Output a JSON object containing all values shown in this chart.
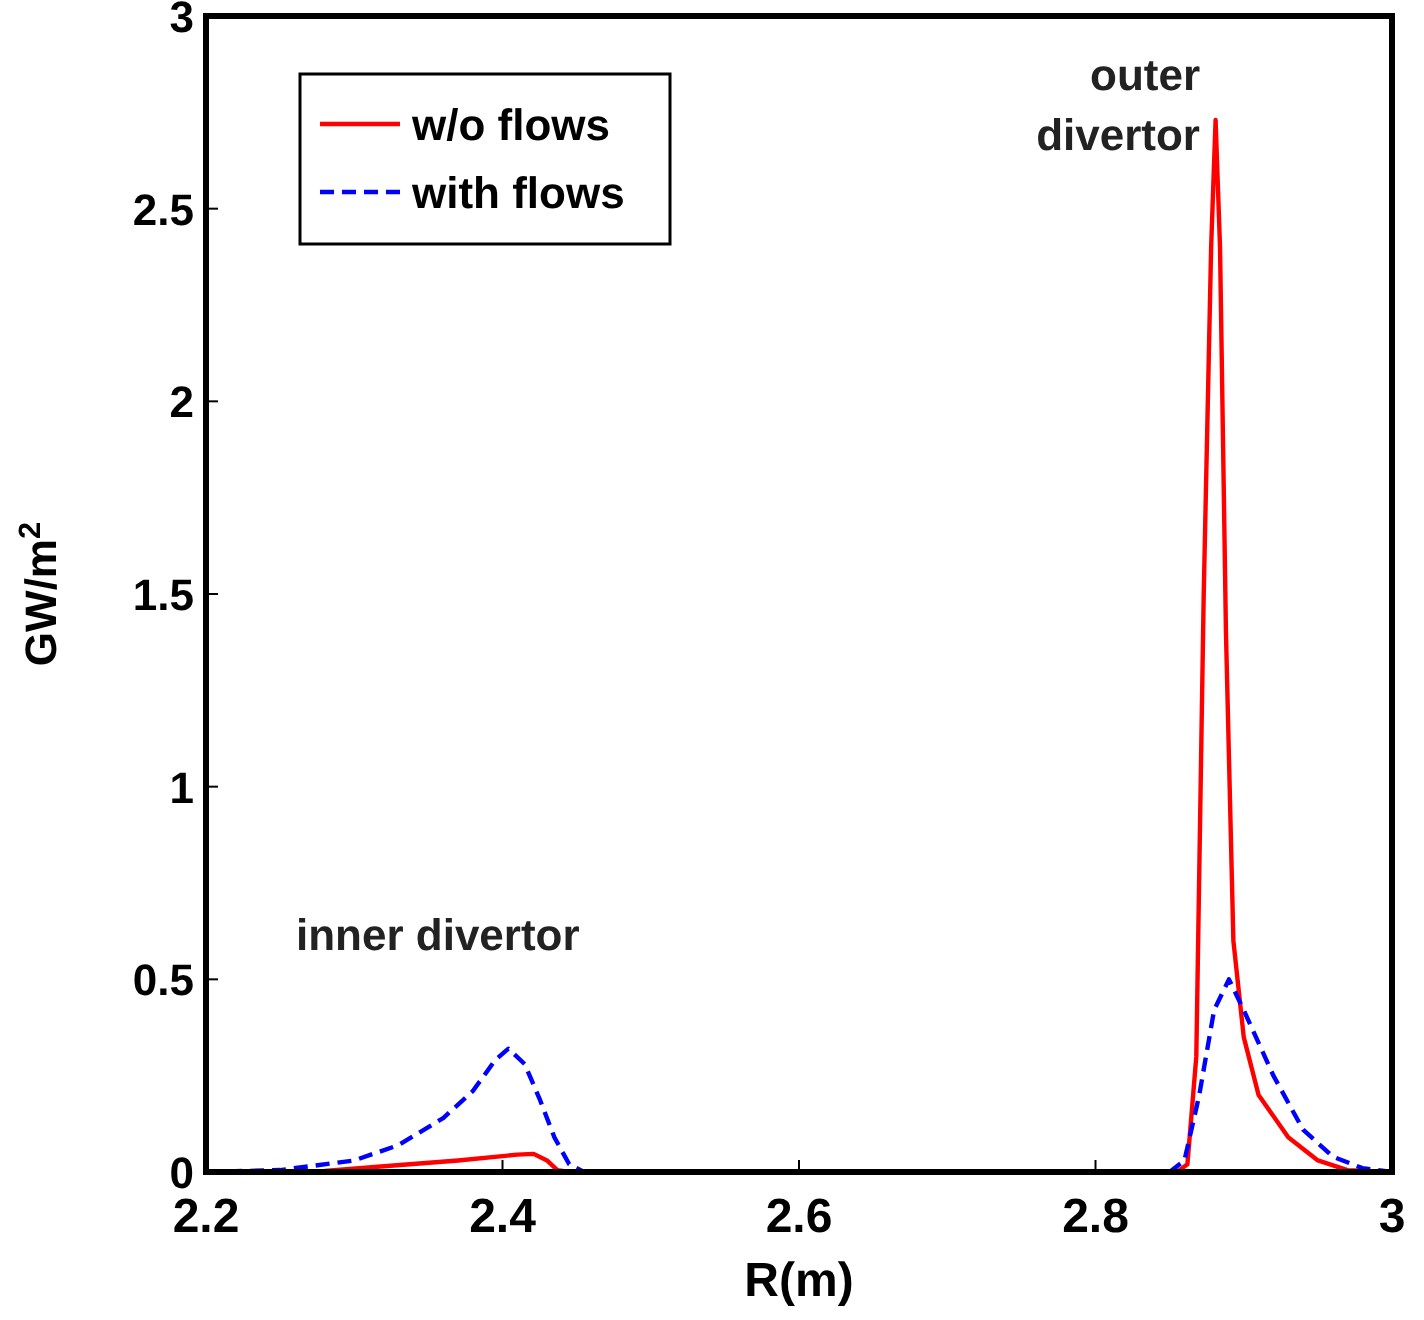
{
  "chart_data": {
    "type": "line",
    "xlabel": "R(m)",
    "ylabel": "GW/m$^{2}$",
    "xlim": [
      2.2,
      3
    ],
    "xticks": [
      2.2,
      2.4,
      2.6,
      2.8,
      3
    ],
    "ylim": [
      0,
      3
    ],
    "yticks": [
      0,
      0.5,
      1,
      1.5,
      2,
      2.5,
      3
    ],
    "grid": false,
    "legend": "top left",
    "annotations": [
      "inner divertor",
      "outer divertor"
    ],
    "series": [
      {
        "name": "w/o flows",
        "color": "#ff0000",
        "line_style": "solid",
        "x": [
          2.2,
          2.28,
          2.32,
          2.37,
          2.41,
          2.421,
          2.43,
          2.437,
          2.445,
          2.855,
          2.862,
          2.868,
          2.873,
          2.878,
          2.881,
          2.884,
          2.888,
          2.893,
          2.9,
          2.91,
          2.93,
          2.95,
          2.97,
          3.0
        ],
        "values": [
          0,
          0.003,
          0.015,
          0.03,
          0.045,
          0.047,
          0.03,
          0.005,
          0,
          0,
          0.02,
          0.3,
          1.5,
          2.4,
          2.73,
          2.4,
          1.4,
          0.6,
          0.35,
          0.2,
          0.09,
          0.03,
          0.005,
          0
        ]
      },
      {
        "name": "with flows",
        "color": "#0000ff",
        "line_style": "dashed",
        "x": [
          2.2,
          2.25,
          2.3,
          2.33,
          2.36,
          2.38,
          2.395,
          2.404,
          2.415,
          2.425,
          2.435,
          2.445,
          2.455,
          2.85,
          2.86,
          2.87,
          2.88,
          2.89,
          2.9,
          2.92,
          2.94,
          2.96,
          2.98,
          3.0
        ],
        "values": [
          0,
          0.005,
          0.03,
          0.07,
          0.14,
          0.21,
          0.29,
          0.32,
          0.28,
          0.19,
          0.09,
          0.02,
          0,
          0,
          0.03,
          0.2,
          0.42,
          0.5,
          0.42,
          0.25,
          0.11,
          0.04,
          0.01,
          0
        ]
      }
    ]
  }
}
